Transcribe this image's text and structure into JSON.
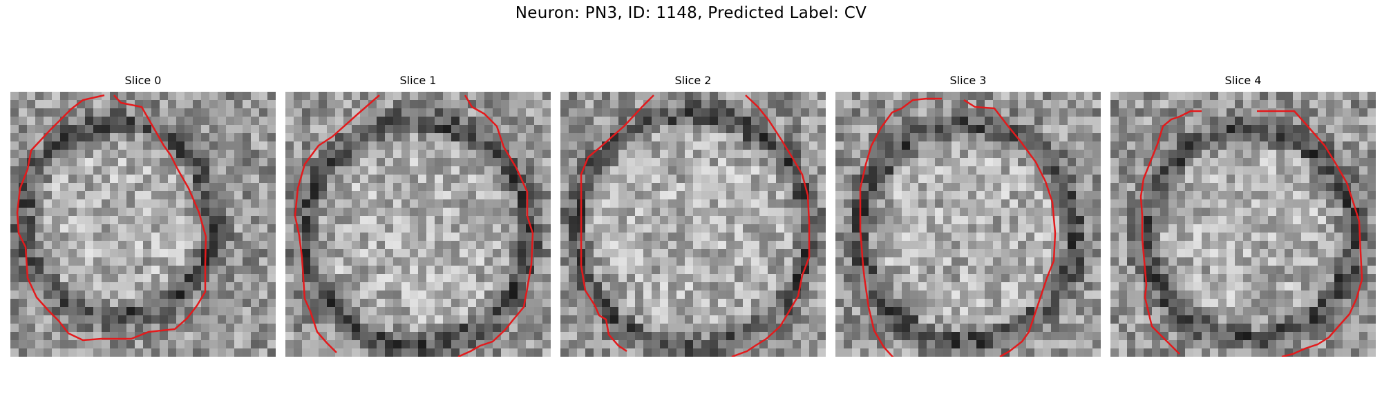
{
  "figure": {
    "title": "Neuron: PN3, ID: 1148, Predicted Label: CV"
  },
  "contour_color": "#e31a1c",
  "colormap": "gray",
  "panels": [
    {
      "label": "Slice 0"
    },
    {
      "label": "Slice 1"
    },
    {
      "label": "Slice 2"
    },
    {
      "label": "Slice 3"
    },
    {
      "label": "Slice 4"
    }
  ]
}
